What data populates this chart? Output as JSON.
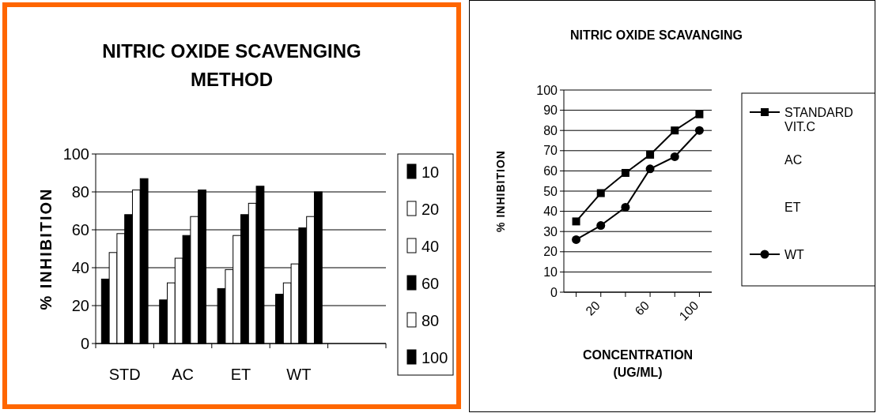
{
  "chart_data": [
    {
      "type": "bar",
      "title": "NITRIC OXIDE SCAVENGING METHOD",
      "ylabel": "% INHIBITION",
      "categories": [
        "STD",
        "AC",
        "ET",
        "WT",
        null
      ],
      "series": [
        {
          "name": "10",
          "color": "#000000",
          "values": [
            34,
            23,
            29,
            26,
            null
          ]
        },
        {
          "name": "20",
          "color": "#ffffff",
          "values": [
            48,
            32,
            39,
            32,
            null
          ]
        },
        {
          "name": "40",
          "color": "#ffffff",
          "values": [
            58,
            45,
            57,
            42,
            null
          ]
        },
        {
          "name": "60",
          "color": "#000000",
          "values": [
            68,
            57,
            68,
            61,
            null
          ]
        },
        {
          "name": "80",
          "color": "#ffffff",
          "values": [
            81,
            67,
            74,
            67,
            null
          ]
        },
        {
          "name": "100",
          "color": "#000000",
          "values": [
            87,
            81,
            83,
            80,
            null
          ]
        }
      ],
      "ylim": [
        0,
        100
      ],
      "yticks": [
        0,
        20,
        40,
        60,
        80,
        100
      ],
      "grid": "y",
      "legend": "right"
    },
    {
      "type": "line",
      "title": "NITRIC OXIDE SCAVANGING",
      "ylabel": "% INHIBITION",
      "xlabel": "CONCENTRATION (UG/ML)",
      "categories": [
        null,
        "20",
        null,
        "60",
        null,
        "100"
      ],
      "series": [
        {
          "name": "STANDARD VIT.C",
          "color": "#000000",
          "marker": "square",
          "values": [
            35,
            49,
            59,
            68,
            80,
            88
          ]
        },
        {
          "name": "AC",
          "marker": "none",
          "values": [
            null,
            null,
            null,
            null,
            null,
            null
          ]
        },
        {
          "name": "ET",
          "marker": "none",
          "values": [
            null,
            null,
            null,
            null,
            null,
            null
          ]
        },
        {
          "name": "WT",
          "color": "#000000",
          "marker": "circle",
          "values": [
            26,
            33,
            42,
            61,
            67,
            80
          ]
        }
      ],
      "ylim": [
        0,
        100
      ],
      "yticks": [
        0,
        10,
        20,
        30,
        40,
        50,
        60,
        70,
        80,
        90,
        100
      ],
      "grid": "y",
      "legend": "right"
    }
  ]
}
